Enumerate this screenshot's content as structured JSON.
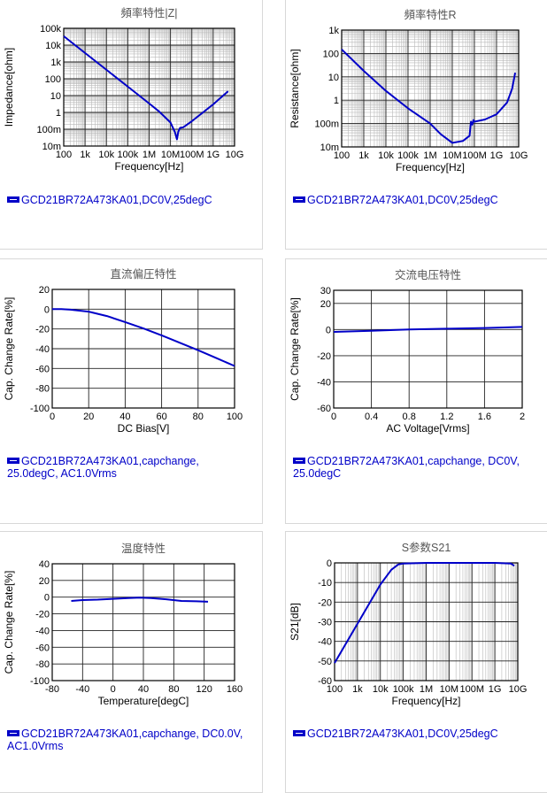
{
  "colors": {
    "series": "#0000c8",
    "grid": "#9a9a9a",
    "axis": "#000000",
    "title": "#555555"
  },
  "legends": [
    "GCD21BR72A473KA01,DC0V,25degC",
    "GCD21BR72A473KA01,DC0V,25degC",
    "GCD21BR72A473KA01,capchange,\n25.0degC, AC1.0Vrms",
    "GCD21BR72A473KA01,capchange, DC0V,\n25.0degC",
    "GCD21BR72A473KA01,capchange, DC0.0V,\nAC1.0Vrms",
    "GCD21BR72A473KA01,DC0V,25degC"
  ],
  "chart_data": [
    {
      "type": "line",
      "title": "頻率特性|Z|",
      "xlabel": "Frequency[Hz]",
      "ylabel": "Impedance[ohm]",
      "xscale": "log",
      "yscale": "log",
      "xlim": [
        100,
        10000000000
      ],
      "ylim": [
        0.01,
        100000
      ],
      "xticks": [
        100,
        1000,
        10000,
        100000,
        1000000,
        10000000,
        100000000,
        1000000000,
        10000000000
      ],
      "xticklabels": [
        "100",
        "1k",
        "10k",
        "100k",
        "1M",
        "10M",
        "100M",
        "1G",
        "10G"
      ],
      "yticks": [
        0.01,
        0.1,
        1,
        10,
        100,
        1000,
        10000,
        100000
      ],
      "yticklabels": [
        "10m",
        "100m",
        "1",
        "10",
        "100",
        "1k",
        "10k",
        "100k"
      ],
      "grid": true,
      "series": [
        {
          "x": [
            100,
            1000,
            10000,
            100000,
            1000000,
            3000000,
            10000000,
            16000000,
            20000000,
            23000000,
            28000000,
            40000000,
            100000000,
            1000000000,
            5000000000
          ],
          "y": [
            34000,
            3400,
            340,
            34,
            3.4,
            1.1,
            0.25,
            0.07,
            0.025,
            0.07,
            0.12,
            0.13,
            0.3,
            3,
            18
          ]
        }
      ]
    },
    {
      "type": "line",
      "title": "頻率特性R",
      "xlabel": "Frequency[Hz]",
      "ylabel": "Resistance[ohm]",
      "xscale": "log",
      "yscale": "log",
      "xlim": [
        100,
        10000000000
      ],
      "ylim": [
        0.01,
        1000
      ],
      "xticks": [
        100,
        1000,
        10000,
        100000,
        1000000,
        10000000,
        100000000,
        1000000000,
        10000000000
      ],
      "xticklabels": [
        "100",
        "1k",
        "10k",
        "100k",
        "1M",
        "10M",
        "100M",
        "1G",
        "10G"
      ],
      "yticks": [
        0.01,
        0.1,
        1,
        10,
        100,
        1000
      ],
      "yticklabels": [
        "10m",
        "100m",
        "1",
        "10",
        "100",
        "1k"
      ],
      "grid": true,
      "series": [
        {
          "x": [
            100,
            1000,
            10000,
            100000,
            1000000,
            3000000,
            10000000,
            30000000,
            60000000,
            70000000,
            80000000,
            90000000,
            100000000,
            300000000,
            1000000000,
            3000000000,
            5000000000,
            7000000000
          ],
          "y": [
            150,
            18,
            2.5,
            0.45,
            0.1,
            0.035,
            0.015,
            0.018,
            0.03,
            0.12,
            0.09,
            0.14,
            0.12,
            0.15,
            0.25,
            0.8,
            3,
            15
          ]
        }
      ]
    },
    {
      "type": "line",
      "title": "直流偏圧特性",
      "xlabel": "DC Bias[V]",
      "ylabel": "Cap. Change Rate[%]",
      "xlim": [
        0,
        100
      ],
      "ylim": [
        -100,
        20
      ],
      "xticks": [
        0,
        20,
        40,
        60,
        80,
        100
      ],
      "xticklabels": [
        "0",
        "20",
        "40",
        "60",
        "80",
        "100"
      ],
      "yticks": [
        -100,
        -80,
        -60,
        -40,
        -20,
        0,
        20
      ],
      "yticklabels": [
        "-100",
        "-80",
        "-60",
        "-40",
        "-20",
        "0",
        "20"
      ],
      "grid": true,
      "series": [
        {
          "x": [
            0,
            5,
            10,
            20,
            30,
            40,
            50,
            60,
            70,
            80,
            90,
            100
          ],
          "y": [
            0,
            0,
            -0.5,
            -2.5,
            -7,
            -13,
            -19.5,
            -26.5,
            -34,
            -41.5,
            -49.5,
            -57.5
          ]
        }
      ]
    },
    {
      "type": "line",
      "title": "交流电压特性",
      "xlabel": "AC Voltage[Vrms]",
      "ylabel": "Cap. Change Rate[%]",
      "xlim": [
        0,
        2
      ],
      "ylim": [
        -60,
        30
      ],
      "xticks": [
        0,
        0.4,
        0.8,
        1.2,
        1.6,
        2
      ],
      "xticklabels": [
        "0",
        "0.4",
        "0.8",
        "1.2",
        "1.6",
        "2"
      ],
      "yticks": [
        -60,
        -40,
        -20,
        0,
        20,
        30
      ],
      "yticklabels": [
        "-60",
        "-40",
        "-20",
        "0",
        "20",
        "30"
      ],
      "grid": true,
      "series": [
        {
          "x": [
            0,
            0.4,
            0.8,
            1.2,
            1.6,
            2
          ],
          "y": [
            -1.8,
            -1,
            0,
            0.6,
            1.2,
            2
          ]
        }
      ]
    },
    {
      "type": "line",
      "title": "温度特性",
      "xlabel": "Temperature[degC]",
      "ylabel": "Cap. Change Rate[%]",
      "xlim": [
        -80,
        160
      ],
      "ylim": [
        -100,
        40
      ],
      "xticks": [
        -80,
        -40,
        0,
        40,
        80,
        120,
        160
      ],
      "xticklabels": [
        "-80",
        "-40",
        "0",
        "40",
        "80",
        "120",
        "160"
      ],
      "yticks": [
        -100,
        -80,
        -60,
        -40,
        -20,
        0,
        20,
        40
      ],
      "yticklabels": [
        "-100",
        "-80",
        "-60",
        "-40",
        "-20",
        "0",
        "20",
        "40"
      ],
      "grid": true,
      "series": [
        {
          "x": [
            -55,
            -40,
            -20,
            0,
            20,
            35,
            50,
            70,
            90,
            110,
            125
          ],
          "y": [
            -4.5,
            -3.5,
            -3,
            -2,
            -1,
            -0.5,
            -1,
            -2.5,
            -4.5,
            -5,
            -5.5
          ]
        }
      ]
    },
    {
      "type": "line",
      "title": "S参数S21",
      "xlabel": "Frequency[Hz]",
      "ylabel": "S21[dB]",
      "xscale": "log",
      "xlim": [
        100,
        10000000000
      ],
      "ylim": [
        -60,
        0
      ],
      "xticks": [
        100,
        1000,
        10000,
        100000,
        1000000,
        10000000,
        100000000,
        1000000000,
        10000000000
      ],
      "xticklabels": [
        "100",
        "1k",
        "10k",
        "100k",
        "1M",
        "10M",
        "100M",
        "1G",
        "10G"
      ],
      "yticks": [
        -60,
        -50,
        -40,
        -30,
        -20,
        -10,
        0
      ],
      "yticklabels": [
        "-60",
        "-50",
        "-40",
        "-30",
        "-20",
        "-10",
        "0"
      ],
      "grid": true,
      "series": [
        {
          "x": [
            100,
            1000,
            10000,
            30000,
            60000,
            100000,
            1000000,
            100000000,
            1000000000,
            5000000000,
            7000000000
          ],
          "y": [
            -51,
            -31,
            -11,
            -3.5,
            -0.8,
            -0.3,
            0,
            0,
            0,
            -0.3,
            -1.5
          ]
        }
      ]
    }
  ]
}
